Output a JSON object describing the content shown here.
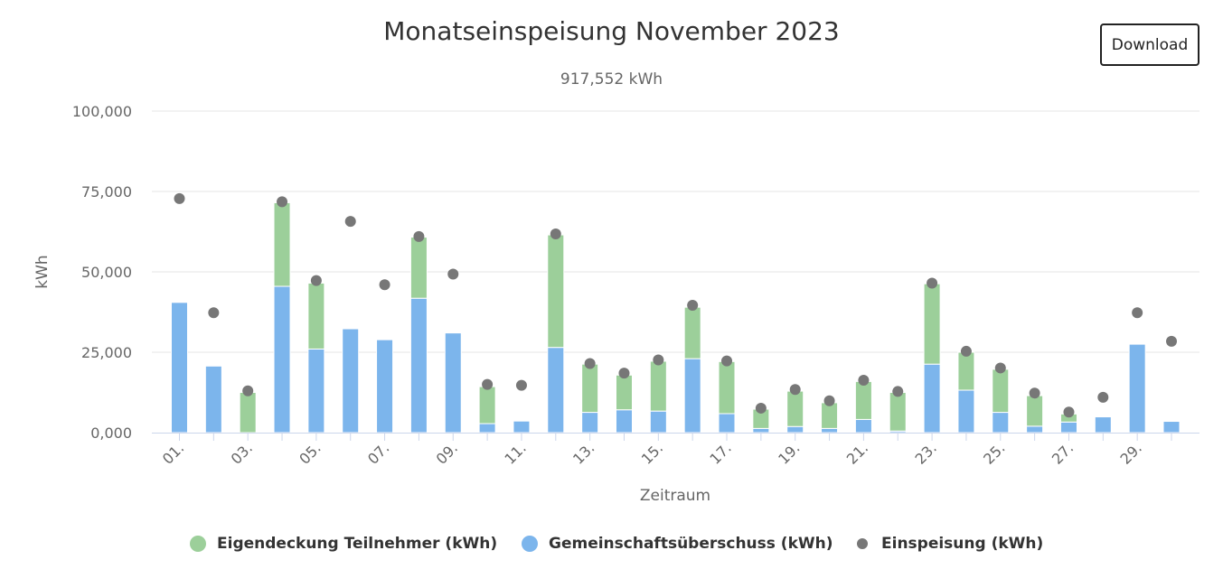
{
  "title": "Monatseinspeisung November 2023",
  "subtitle": "917,552 kWh",
  "download_label": "Download",
  "chart_data": {
    "type": "bar",
    "stacked": true,
    "x": [
      "01.",
      "02.",
      "03.",
      "04.",
      "05.",
      "06.",
      "07.",
      "08.",
      "09.",
      "10.",
      "11.",
      "12.",
      "13.",
      "14.",
      "15.",
      "16.",
      "17.",
      "18.",
      "19.",
      "20.",
      "21.",
      "22.",
      "23.",
      "24.",
      "25.",
      "26.",
      "27.",
      "28.",
      "29.",
      "30."
    ],
    "x_tick_labels": [
      "01.",
      "03.",
      "05.",
      "07.",
      "09.",
      "11.",
      "13.",
      "15.",
      "17.",
      "19.",
      "21.",
      "23.",
      "25.",
      "27.",
      "29."
    ],
    "ylabel": "kWh",
    "xlabel": "Zeitraum",
    "ylim": [
      0,
      100000
    ],
    "y_ticks": [
      0,
      25000,
      50000,
      75000,
      100000
    ],
    "y_tick_labels": [
      "0,000",
      "25,000",
      "50,000",
      "75,000",
      "100,000"
    ],
    "grid": true,
    "legend_position": "bottom",
    "series": [
      {
        "name": "Eigendeckung Teilnehmer (kWh)",
        "kind": "bar",
        "color": "#9ccf9a",
        "values": [
          0,
          0,
          12500,
          26000,
          20500,
          0,
          0,
          19000,
          0,
          11500,
          0,
          35000,
          15000,
          10800,
          15500,
          16000,
          16200,
          6000,
          11000,
          8000,
          11800,
          12000,
          25000,
          11800,
          13400,
          9500,
          2500,
          0,
          0,
          0
        ]
      },
      {
        "name": "Gemeinschaftsüberschuss (kWh)",
        "kind": "bar",
        "color": "#7cb5ec",
        "values": [
          40500,
          20700,
          0,
          45500,
          26000,
          32300,
          28900,
          41800,
          31000,
          2800,
          3600,
          26500,
          6300,
          7100,
          6700,
          23000,
          5900,
          1300,
          1900,
          1300,
          4100,
          500,
          21300,
          13200,
          6300,
          2000,
          3300,
          4900,
          27500,
          3500
        ]
      },
      {
        "name": "Einspeisung (kWh)",
        "kind": "scatter",
        "color": "#777777",
        "values": [
          72800,
          37300,
          13000,
          71800,
          47300,
          65700,
          46000,
          61000,
          49300,
          15000,
          14700,
          61800,
          21500,
          18500,
          22600,
          39600,
          22300,
          7600,
          13400,
          9900,
          16300,
          12800,
          46500,
          25300,
          20100,
          12300,
          6400,
          11000,
          37300,
          28400
        ]
      }
    ]
  }
}
